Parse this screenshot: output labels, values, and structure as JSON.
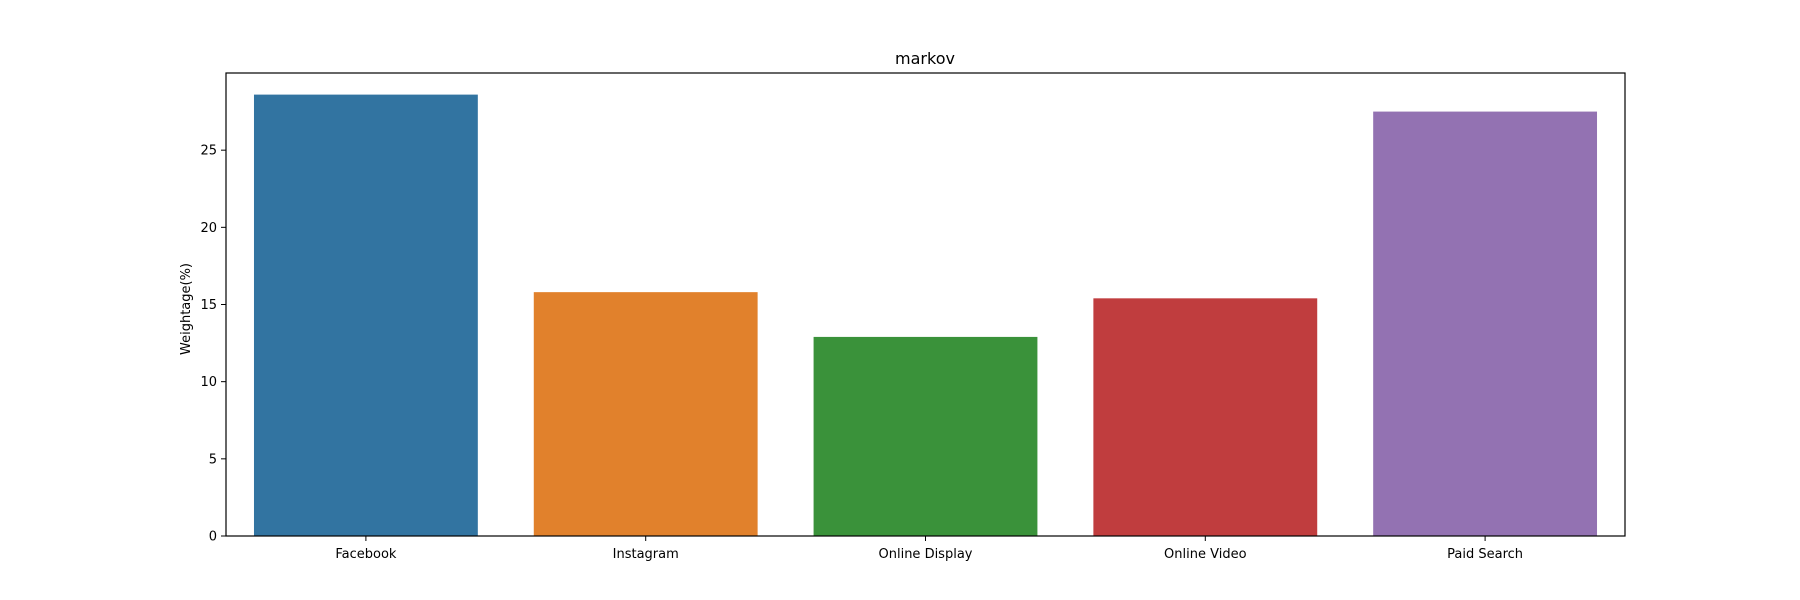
{
  "chart_data": {
    "type": "bar",
    "title": "markov",
    "xlabel": "",
    "ylabel": "Weightage(%)",
    "categories": [
      "Facebook",
      "Instagram",
      "Online Display",
      "Online Video",
      "Paid Search"
    ],
    "values": [
      28.6,
      15.8,
      12.9,
      15.4,
      27.5
    ],
    "colors": [
      "#3274a1",
      "#e1812c",
      "#3a923a",
      "#c03d3e",
      "#9372b2"
    ],
    "ylim": [
      0,
      30
    ],
    "yticks": [
      0,
      5,
      10,
      15,
      20,
      25
    ],
    "grid": false,
    "legend": "none"
  }
}
